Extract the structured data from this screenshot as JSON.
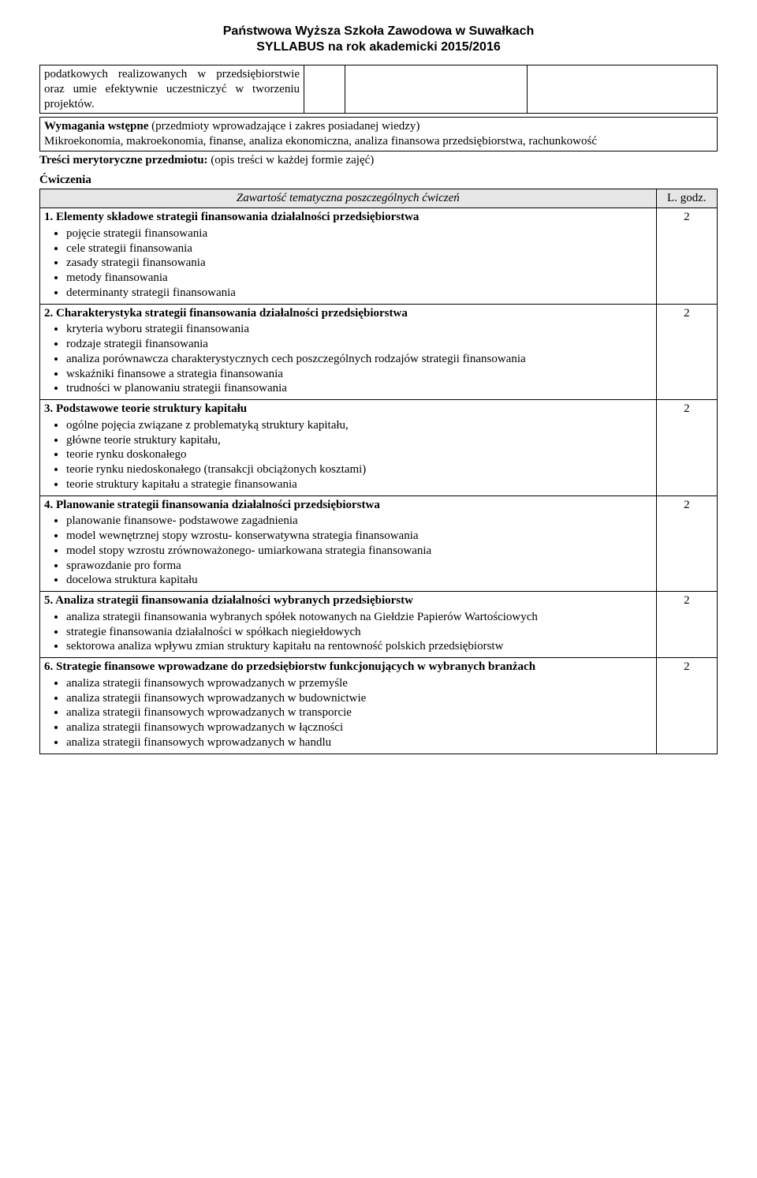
{
  "header": {
    "line1": "Państwowa Wyższa Szkoła Zawodowa w Suwałkach",
    "line2": "SYLLABUS  na rok akademicki 2015/2016"
  },
  "topRow": {
    "text": "podatkowych realizowanych w przedsiębiorstwie oraz umie efektywnie uczestniczyć w tworzeniu projektów."
  },
  "prereq": {
    "title": "Wymagania wstępne",
    "titleTail": " (przedmioty wprowadzające i zakres posiadanej wiedzy)",
    "body": "Mikroekonomia, makroekonomia, finanse, analiza ekonomiczna, analiza finansowa przedsiębiorstwa, rachunkowość"
  },
  "contentHeader": {
    "bold": "Treści merytoryczne przedmiotu:",
    "plain": " (opis treści w każdej formie zajęć)"
  },
  "exercisesLabel": "Ćwiczenia",
  "tableHeader": {
    "left": "Zawartość tematyczna poszczególnych ćwiczeń",
    "right": "L. godz."
  },
  "topics": [
    {
      "title": "1. Elementy składowe strategii finansowania działalności przedsiębiorstwa",
      "hours": "2",
      "bullets": [
        "pojęcie strategii finansowania",
        "cele strategii finansowania",
        "zasady strategii finansowania",
        "metody finansowania",
        "determinanty strategii finansowania"
      ]
    },
    {
      "title": "2. Charakterystyka strategii finansowania działalności przedsiębiorstwa",
      "hours": "2",
      "bullets": [
        "kryteria wyboru strategii finansowania",
        "rodzaje strategii finansowania",
        "analiza porównawcza charakterystycznych cech poszczególnych rodzajów strategii finansowania",
        "wskaźniki finansowe a strategia finansowania",
        "trudności w planowaniu strategii finansowania"
      ]
    },
    {
      "title": "3. Podstawowe teorie struktury kapitału",
      "hours": "2",
      "bullets": [
        "ogólne pojęcia związane z problematyką struktury kapitału,",
        "główne teorie struktury kapitału,",
        "teorie rynku doskonałego",
        "teorie rynku niedoskonałego (transakcji obciążonych kosztami)",
        "teorie struktury kapitału a strategie finansowania"
      ]
    },
    {
      "title": "4. Planowanie strategii finansowania działalności przedsiębiorstwa",
      "hours": "2",
      "bullets": [
        "planowanie finansowe- podstawowe zagadnienia",
        "model wewnętrznej stopy wzrostu- konserwatywna strategia finansowania",
        "model stopy wzrostu zrównoważonego- umiarkowana strategia finansowania",
        "sprawozdanie pro forma",
        "docelowa struktura kapitału"
      ]
    },
    {
      "title": "5. Analiza strategii finansowania działalności wybranych przedsiębiorstw",
      "hours": "2",
      "bullets": [
        "analiza strategii finansowania wybranych spółek notowanych na Giełdzie Papierów Wartościowych",
        "strategie finansowania działalności w spółkach niegiełdowych",
        "sektorowa analiza wpływu zmian struktury kapitału na rentowność polskich przedsiębiorstw"
      ]
    },
    {
      "title": "6. Strategie finansowe wprowadzane do przedsiębiorstw funkcjonujących w wybranych branżach",
      "hours": "2",
      "bullets": [
        "analiza strategii finansowych wprowadzanych w przemyśle",
        "analiza strategii finansowych wprowadzanych w budownictwie",
        "analiza strategii finansowych wprowadzanych w transporcie",
        "analiza strategii finansowych wprowadzanych w łączności",
        "analiza strategii finansowych wprowadzanych w handlu"
      ]
    }
  ]
}
